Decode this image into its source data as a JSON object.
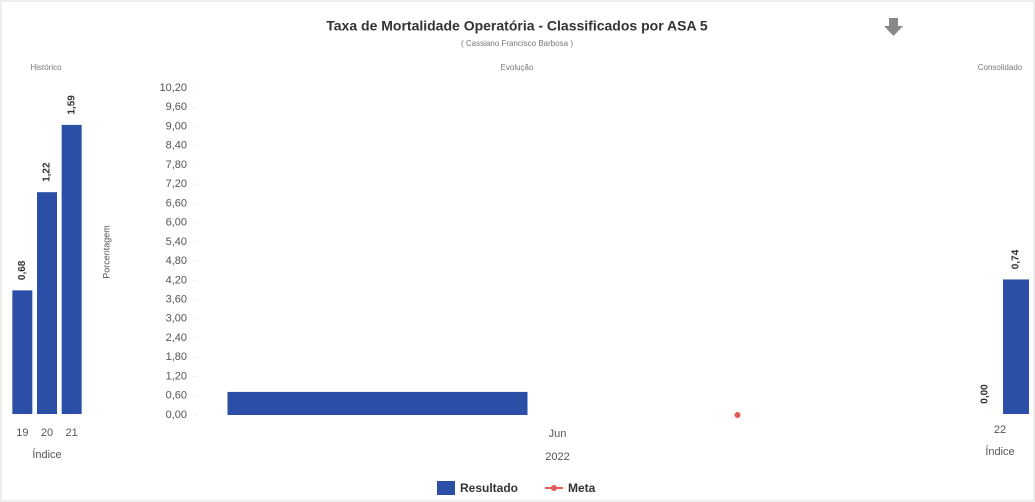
{
  "header": {
    "title": "Taxa de Mortalidade Operatória - Classificados por ASA 5",
    "subtitle": "( Cassiano Francisco Barbosa )"
  },
  "chart_data": [
    {
      "type": "bar",
      "title": "Histórico",
      "categories": [
        "19",
        "20",
        "21"
      ],
      "x_label": "Índice",
      "series": [
        {
          "name": "Resultado",
          "color": "#2b4ea6",
          "values": [
            0.68,
            1.22,
            1.59
          ],
          "value_labels": [
            "0,68",
            "1,22",
            "1,59"
          ]
        }
      ],
      "ylim": [
        0,
        1.65
      ]
    },
    {
      "type": "bar",
      "title": "Evolução",
      "categories": [
        "Jun"
      ],
      "x_label": "2022",
      "y_label": "Porcentagem",
      "ylim": [
        0,
        10.2
      ],
      "yticks": [
        {
          "value": 0,
          "label": "0,00"
        },
        {
          "value": 0.6,
          "label": "0,60"
        },
        {
          "value": 1.2,
          "label": "1,20"
        },
        {
          "value": 1.8,
          "label": "1,80"
        },
        {
          "value": 2.4,
          "label": "2,40"
        },
        {
          "value": 3,
          "label": "3,00"
        },
        {
          "value": 3.6,
          "label": "3,60"
        },
        {
          "value": 4.2,
          "label": "4,20"
        },
        {
          "value": 4.8,
          "label": "4,80"
        },
        {
          "value": 5.4,
          "label": "5,40"
        },
        {
          "value": 6,
          "label": "6,00"
        },
        {
          "value": 6.6,
          "label": "6,60"
        },
        {
          "value": 7.2,
          "label": "7,20"
        },
        {
          "value": 7.8,
          "label": "7,80"
        },
        {
          "value": 8.4,
          "label": "8,40"
        },
        {
          "value": 9,
          "label": "9,00"
        },
        {
          "value": 9.6,
          "label": "9,60"
        },
        {
          "value": 10.2,
          "label": "10,20"
        }
      ],
      "series": [
        {
          "name": "Resultado",
          "color": "#2b4ea6",
          "values": [
            0.72
          ]
        },
        {
          "name": "Meta",
          "color": "#e05a5a",
          "values": [
            0
          ],
          "value_labels": [
            "0.00"
          ]
        }
      ],
      "legend": "bottom"
    },
    {
      "type": "bar",
      "title": "Consolidado",
      "categories": [
        "22"
      ],
      "x_label": "Índice",
      "series": [
        {
          "color": "#2b4ea6",
          "values": [
            0
          ],
          "value_labels": [
            "0,00"
          ]
        },
        {
          "color": "#2b4ea6",
          "values": [
            0.74
          ],
          "value_labels": [
            "0,74"
          ]
        }
      ],
      "ylim": [
        0,
        1.65
      ]
    }
  ]
}
